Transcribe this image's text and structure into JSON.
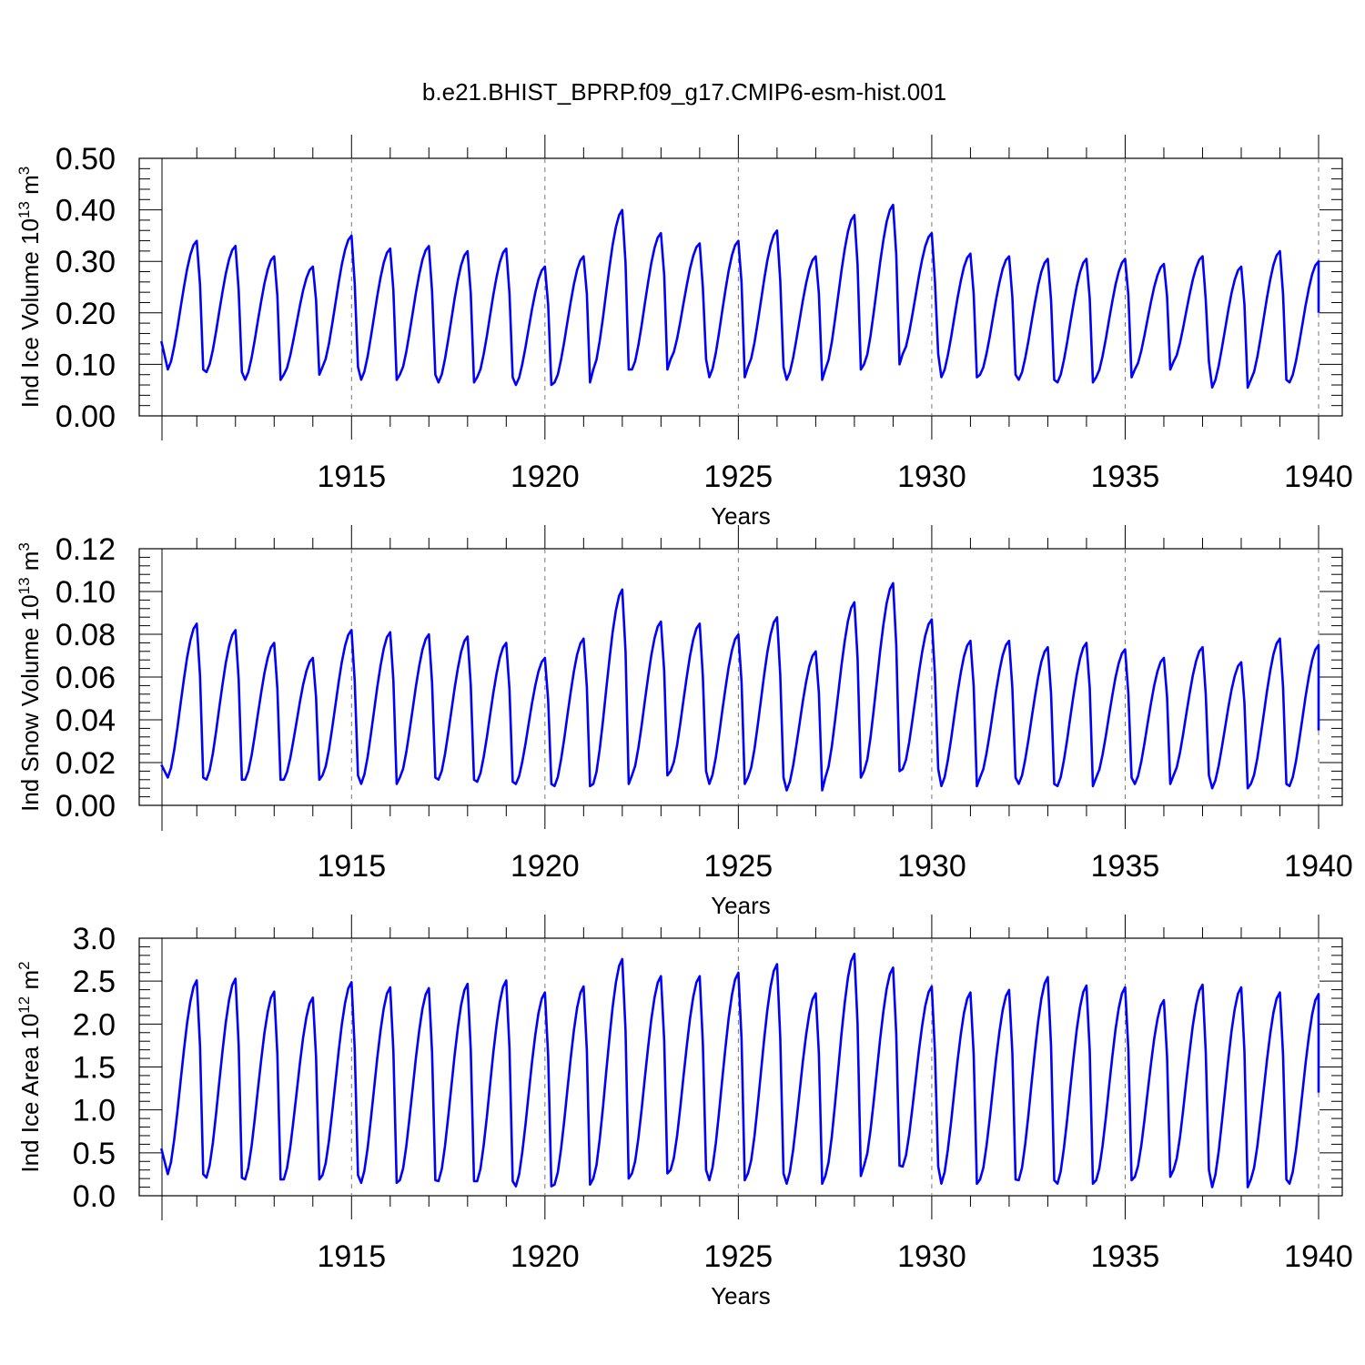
{
  "title": "b.e21.BHIST_BPRP.f09_g17.CMIP6-esm-hist.001",
  "colors": {
    "line": "#0000ff",
    "grid": "#777777",
    "axes": "#000000"
  },
  "chart_data": [
    {
      "type": "line",
      "xlabel": "Years",
      "ylabel": "Ind Ice Volume 10",
      "ylabel_exp": "13",
      "ylabel_unit": " m",
      "ylabel_unit_exp": "3",
      "xlim": [
        1910.1,
        1940
      ],
      "ylim": [
        0,
        0.5
      ],
      "x_ticks": [
        "1915",
        "1920",
        "1925",
        "1930",
        "1935",
        "1940"
      ],
      "y_ticks": [
        "0.00",
        "0.10",
        "0.20",
        "0.30",
        "0.40",
        "0.50"
      ],
      "grid": "dashed vertical at 5-year ticks",
      "series": [
        {
          "start": 1910.083,
          "step": 0.0833,
          "yearly_max": [
            0.34,
            0.33,
            0.31,
            0.29,
            0.35,
            0.325,
            0.33,
            0.32,
            0.325,
            0.29,
            0.31,
            0.4,
            0.355,
            0.335,
            0.34,
            0.36,
            0.31,
            0.39,
            0.41,
            0.355,
            0.315,
            0.31,
            0.305,
            0.305,
            0.305,
            0.295,
            0.31,
            0.29,
            0.32,
            0.3
          ],
          "yearly_min": [
            0.09,
            0.085,
            0.07,
            0.08,
            0.095,
            0.07,
            0.08,
            0.065,
            0.075,
            0.06,
            0.065,
            0.09,
            0.09,
            0.11,
            0.075,
            0.095,
            0.07,
            0.09,
            0.1,
            0.12,
            0.075,
            0.08,
            0.07,
            0.065,
            0.075,
            0.09,
            0.105,
            0.055,
            0.07,
            0.065
          ],
          "first_value": 0.145,
          "last_value": 0.2
        }
      ]
    },
    {
      "type": "line",
      "xlabel": "Years",
      "ylabel": "Ind Snow Volume 10",
      "ylabel_exp": "13",
      "ylabel_unit": " m",
      "ylabel_unit_exp": "3",
      "xlim": [
        1910.1,
        1940
      ],
      "ylim": [
        0,
        0.12
      ],
      "x_ticks": [
        "1915",
        "1920",
        "1925",
        "1930",
        "1935",
        "1940"
      ],
      "y_ticks": [
        "0.00",
        "0.02",
        "0.04",
        "0.06",
        "0.08",
        "0.10",
        "0.12"
      ],
      "grid": "dashed vertical at 5-year ticks",
      "series": [
        {
          "start": 1910.083,
          "step": 0.0833,
          "yearly_max": [
            0.085,
            0.082,
            0.076,
            0.069,
            0.082,
            0.081,
            0.08,
            0.079,
            0.076,
            0.069,
            0.078,
            0.101,
            0.086,
            0.085,
            0.08,
            0.088,
            0.072,
            0.095,
            0.104,
            0.087,
            0.077,
            0.077,
            0.074,
            0.076,
            0.073,
            0.069,
            0.074,
            0.067,
            0.078,
            0.075
          ],
          "yearly_min": [
            0.013,
            0.012,
            0.012,
            0.012,
            0.014,
            0.01,
            0.013,
            0.012,
            0.011,
            0.01,
            0.009,
            0.01,
            0.014,
            0.016,
            0.01,
            0.013,
            0.007,
            0.013,
            0.016,
            0.017,
            0.009,
            0.013,
            0.01,
            0.009,
            0.013,
            0.01,
            0.014,
            0.008,
            0.01,
            0.009
          ],
          "first_value": 0.019,
          "last_value": 0.035
        }
      ]
    },
    {
      "type": "line",
      "xlabel": "Years",
      "ylabel": "Ind Ice Area 10",
      "ylabel_exp": "12",
      "ylabel_unit": " m",
      "ylabel_unit_exp": "2",
      "xlim": [
        1910.1,
        1940
      ],
      "ylim": [
        0,
        3.0
      ],
      "x_ticks": [
        "1915",
        "1920",
        "1925",
        "1930",
        "1935",
        "1940"
      ],
      "y_ticks": [
        "0.0",
        "0.5",
        "1.0",
        "1.5",
        "2.0",
        "2.5",
        "3.0"
      ],
      "grid": "dashed vertical at 5-year ticks",
      "series": [
        {
          "start": 1910.083,
          "step": 0.0833,
          "yearly_max": [
            2.51,
            2.53,
            2.38,
            2.31,
            2.49,
            2.43,
            2.42,
            2.47,
            2.51,
            2.37,
            2.44,
            2.76,
            2.56,
            2.56,
            2.6,
            2.7,
            2.36,
            2.82,
            2.66,
            2.44,
            2.37,
            2.4,
            2.55,
            2.45,
            2.43,
            2.28,
            2.46,
            2.43,
            2.37,
            2.35
          ],
          "yearly_min": [
            0.25,
            0.21,
            0.19,
            0.19,
            0.24,
            0.15,
            0.18,
            0.17,
            0.17,
            0.11,
            0.13,
            0.2,
            0.26,
            0.3,
            0.18,
            0.26,
            0.14,
            0.23,
            0.35,
            0.34,
            0.14,
            0.19,
            0.18,
            0.14,
            0.18,
            0.22,
            0.3,
            0.1,
            0.19,
            0.14
          ],
          "first_value": 0.55,
          "last_value": 1.2
        }
      ]
    }
  ]
}
